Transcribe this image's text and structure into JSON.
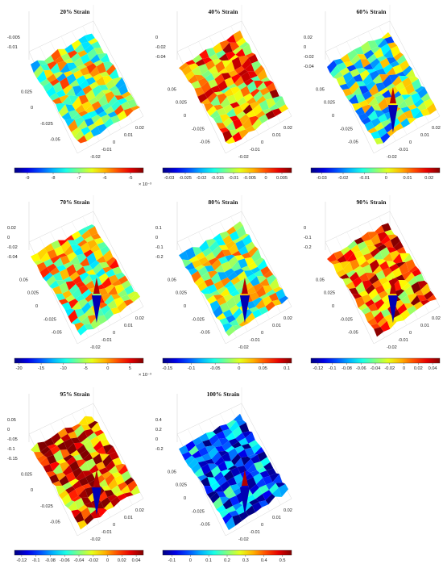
{
  "figure": {
    "chart_data": [
      {
        "type": "surface",
        "title": "20% Strain",
        "z_ticks": [
          "-0.005",
          "-0.01"
        ],
        "y_ticks": [
          "0.025",
          "0",
          "-0.025",
          "-0.05"
        ],
        "x_ticks": [
          "0.02",
          "0.01",
          "0",
          "-0.01",
          "-0.02"
        ],
        "colorbar": {
          "ticks": [
            "-9",
            "-8",
            "-7",
            "-6",
            "-5"
          ],
          "range": [
            -0.0095,
            -0.0045
          ],
          "exponent": "× 10⁻³"
        },
        "color_bias": 0.55
      },
      {
        "type": "surface",
        "title": "40% Strain",
        "z_ticks": [
          "0",
          "-0.02",
          "-0.04"
        ],
        "y_ticks": [
          "0.05",
          "0.025",
          "0",
          "-0.025",
          "-0.05"
        ],
        "x_ticks": [
          "0.02",
          "0.01",
          "0",
          "-0.01",
          "-0.02"
        ],
        "colorbar": {
          "ticks": [
            "-0.03",
            "-0.025",
            "-0.02",
            "-0.015",
            "-0.01",
            "-0.005",
            "0",
            "0.005"
          ],
          "range": [
            -0.032,
            0.008
          ],
          "exponent": ""
        },
        "color_bias": 0.72
      },
      {
        "type": "surface",
        "title": "60% Strain",
        "z_ticks": [
          "0.02",
          "0",
          "-0.02",
          "-0.04"
        ],
        "y_ticks": [
          "0.05",
          "0.025",
          "0",
          "-0.025",
          "-0.05"
        ],
        "x_ticks": [
          "0.02",
          "0.01",
          "0",
          "-0.01",
          "-0.02"
        ],
        "colorbar": {
          "ticks": [
            "-0.03",
            "-0.02",
            "-0.01",
            "0",
            "0.01",
            "0.02"
          ],
          "range": [
            -0.035,
            0.025
          ],
          "exponent": ""
        },
        "color_bias": 0.45
      },
      {
        "type": "surface",
        "title": "70% Strain",
        "z_ticks": [
          "0.02",
          "0",
          "-0.02",
          "-0.04"
        ],
        "y_ticks": [
          "0.05",
          "0.025",
          "0",
          "-0.025",
          "-0.05"
        ],
        "x_ticks": [
          "0.02",
          "0.01",
          "0",
          "-0.01",
          "-0.02"
        ],
        "colorbar": {
          "ticks": [
            "-20",
            "-15",
            "-10",
            "-5",
            "0",
            "5"
          ],
          "range": [
            -0.021,
            0.008
          ],
          "exponent": "× 10⁻³"
        },
        "color_bias": 0.6
      },
      {
        "type": "surface",
        "title": "80% Strain",
        "z_ticks": [
          "0.1",
          "0",
          "-0.1",
          "-0.2"
        ],
        "y_ticks": [
          "0.05",
          "0.025",
          "0",
          "-0.025",
          "-0.05"
        ],
        "x_ticks": [
          "0.02",
          "0.01",
          "0",
          "-0.01",
          "-0.02"
        ],
        "colorbar": {
          "ticks": [
            "-0.15",
            "-0.1",
            "-0.05",
            "0",
            "0.05",
            "0.1"
          ],
          "range": [
            -0.16,
            0.11
          ],
          "exponent": ""
        },
        "color_bias": 0.52
      },
      {
        "type": "surface",
        "title": "90% Strain",
        "z_ticks": [
          "0",
          "-0.1",
          "-0.2"
        ],
        "y_ticks": [
          "0.05",
          "0.025",
          "0",
          "-0.025",
          "-0.05"
        ],
        "x_ticks": [
          "0.02",
          "0.01",
          "0",
          "-0.01",
          "-0.02"
        ],
        "colorbar": {
          "ticks": [
            "-0.12",
            "-0.1",
            "-0.08",
            "-0.06",
            "-0.04",
            "-0.02",
            "0",
            "0.02",
            "0.04"
          ],
          "range": [
            -0.13,
            0.05
          ],
          "exponent": ""
        },
        "color_bias": 0.78
      },
      {
        "type": "surface",
        "title": "95% Strain",
        "z_ticks": [
          "0.05",
          "0",
          "-0.05",
          "-0.1",
          "-0.15"
        ],
        "y_ticks": [
          "0.025",
          "0",
          "-0.025",
          "-0.05"
        ],
        "x_ticks": [
          "0.02",
          "0.01",
          "0",
          "-0.01",
          "-0.02"
        ],
        "colorbar": {
          "ticks": [
            "-0.12",
            "-0.1",
            "-0.08",
            "-0.06",
            "-0.04",
            "-0.02",
            "0",
            "0.02",
            "0.04"
          ],
          "range": [
            -0.13,
            0.05
          ],
          "exponent": ""
        },
        "color_bias": 0.8
      },
      {
        "type": "surface",
        "title": "100% Strain",
        "z_ticks": [
          "0.4",
          "0.2",
          "0",
          "-0.2"
        ],
        "y_ticks": [
          "0.05",
          "0.025",
          "0",
          "-0.025",
          "-0.05"
        ],
        "x_ticks": [
          "0.02",
          "0.01",
          "0",
          "-0.01",
          "-0.02"
        ],
        "colorbar": {
          "ticks": [
            "-0.1",
            "0",
            "0.1",
            "0.2",
            "0.3",
            "0.4",
            "0.5"
          ],
          "range": [
            -0.15,
            0.55
          ],
          "exponent": ""
        },
        "color_bias": 0.2
      }
    ]
  }
}
